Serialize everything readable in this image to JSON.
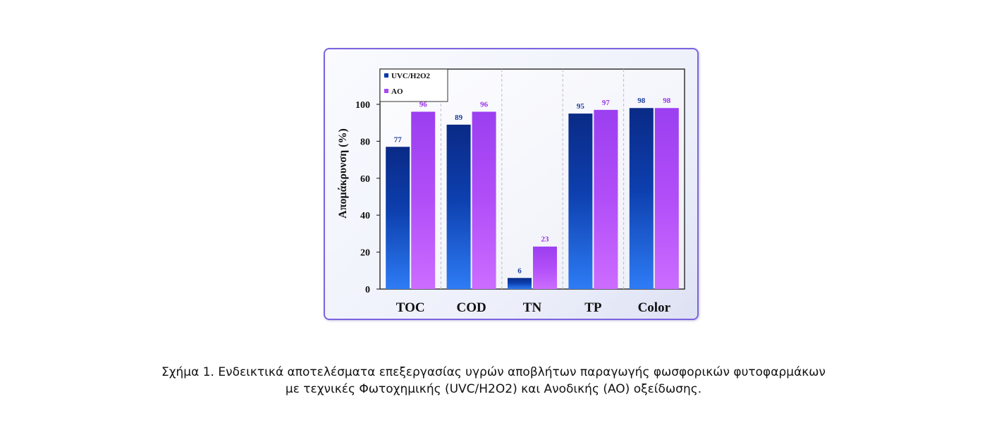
{
  "chart_data": {
    "type": "bar",
    "categories": [
      "TOC",
      "COD",
      "TN",
      "TP",
      "Color"
    ],
    "series": [
      {
        "name": "UVC/H2O2",
        "values": [
          77,
          89,
          6,
          95,
          98
        ],
        "color": "#0b39a8"
      },
      {
        "name": "AO",
        "values": [
          96,
          96,
          23,
          97,
          98
        ],
        "color": "#a848f2"
      }
    ],
    "data_labels": [
      [
        "77",
        "89",
        "6",
        "95",
        "98"
      ],
      [
        "96",
        "96",
        "23",
        "97",
        "98"
      ]
    ],
    "ylabel": "Απομάκρυνση (%)",
    "xlabel": "",
    "ylim": [
      0,
      100
    ],
    "yticks": [
      "0",
      "20",
      "40",
      "60",
      "80",
      "100"
    ],
    "grid": "vertical dashed",
    "legend_position": "top-left"
  },
  "caption": {
    "line1": "Σχήμα 1. Ενδεικτικά αποτελέσματα επεξεργασίας υγρών αποβλήτων παραγωγής φωσφορικών φυτοφαρμάκων",
    "line2": "με τεχνικές Φωτοχημικής (UVC/H2O2) και Ανοδικής (AO) οξείδωσης."
  },
  "colors": {
    "frame_border": "#7b63e0",
    "series1_label": "#1a3d9c",
    "series2_label": "#9a35e8"
  }
}
